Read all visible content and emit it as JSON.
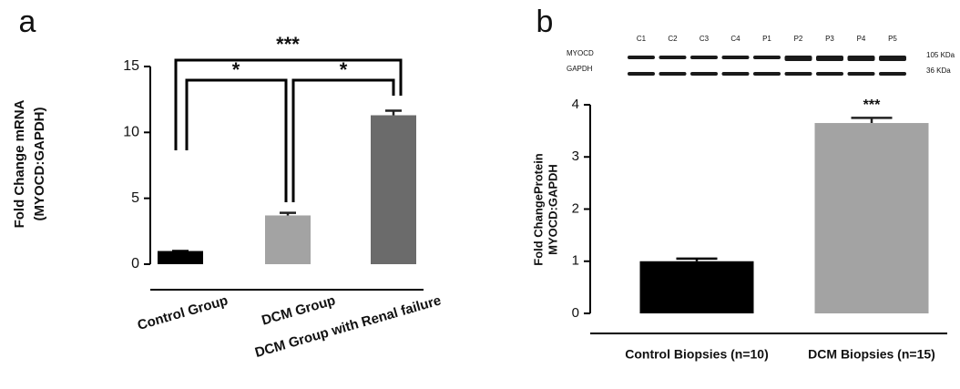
{
  "chart_data": [
    {
      "type": "bar",
      "panel": "a",
      "ylabel": [
        "Fold Change mRNA",
        "(MYOCD:GAPDH)"
      ],
      "categories": [
        "Control Group",
        "DCM Group",
        "DCM Group with Renal failure"
      ],
      "values": [
        1.0,
        3.7,
        11.3
      ],
      "errors": [
        0,
        0.2,
        0.35
      ],
      "colors": [
        "#000000",
        "#a3a3a3",
        "#6b6b6b"
      ],
      "ylim": [
        0,
        15
      ],
      "yticks": [
        0,
        5,
        10,
        15
      ],
      "annotations": [
        "*",
        "*",
        "***"
      ]
    },
    {
      "type": "bar",
      "panel": "b",
      "ylabel": [
        "Fold ChangeProtein",
        "MYOCD:GAPDH"
      ],
      "categories": [
        "Control Biopsies (n=10)",
        "DCM Biopsies (n=15)"
      ],
      "values": [
        1.0,
        3.65
      ],
      "errors": [
        0.05,
        0.1
      ],
      "colors": [
        "#000000",
        "#a3a3a3"
      ],
      "ylim": [
        0,
        4
      ],
      "yticks": [
        0,
        1,
        2,
        3,
        4
      ],
      "annotations": [
        "***"
      ],
      "blot": {
        "lanes": [
          "C1",
          "C2",
          "C3",
          "C4",
          "P1",
          "P2",
          "P3",
          "P4",
          "P5"
        ],
        "rows": [
          {
            "name": "MYOCD",
            "size": "105 KDa"
          },
          {
            "name": "GAPDH",
            "size": "36 KDa"
          }
        ]
      }
    }
  ]
}
